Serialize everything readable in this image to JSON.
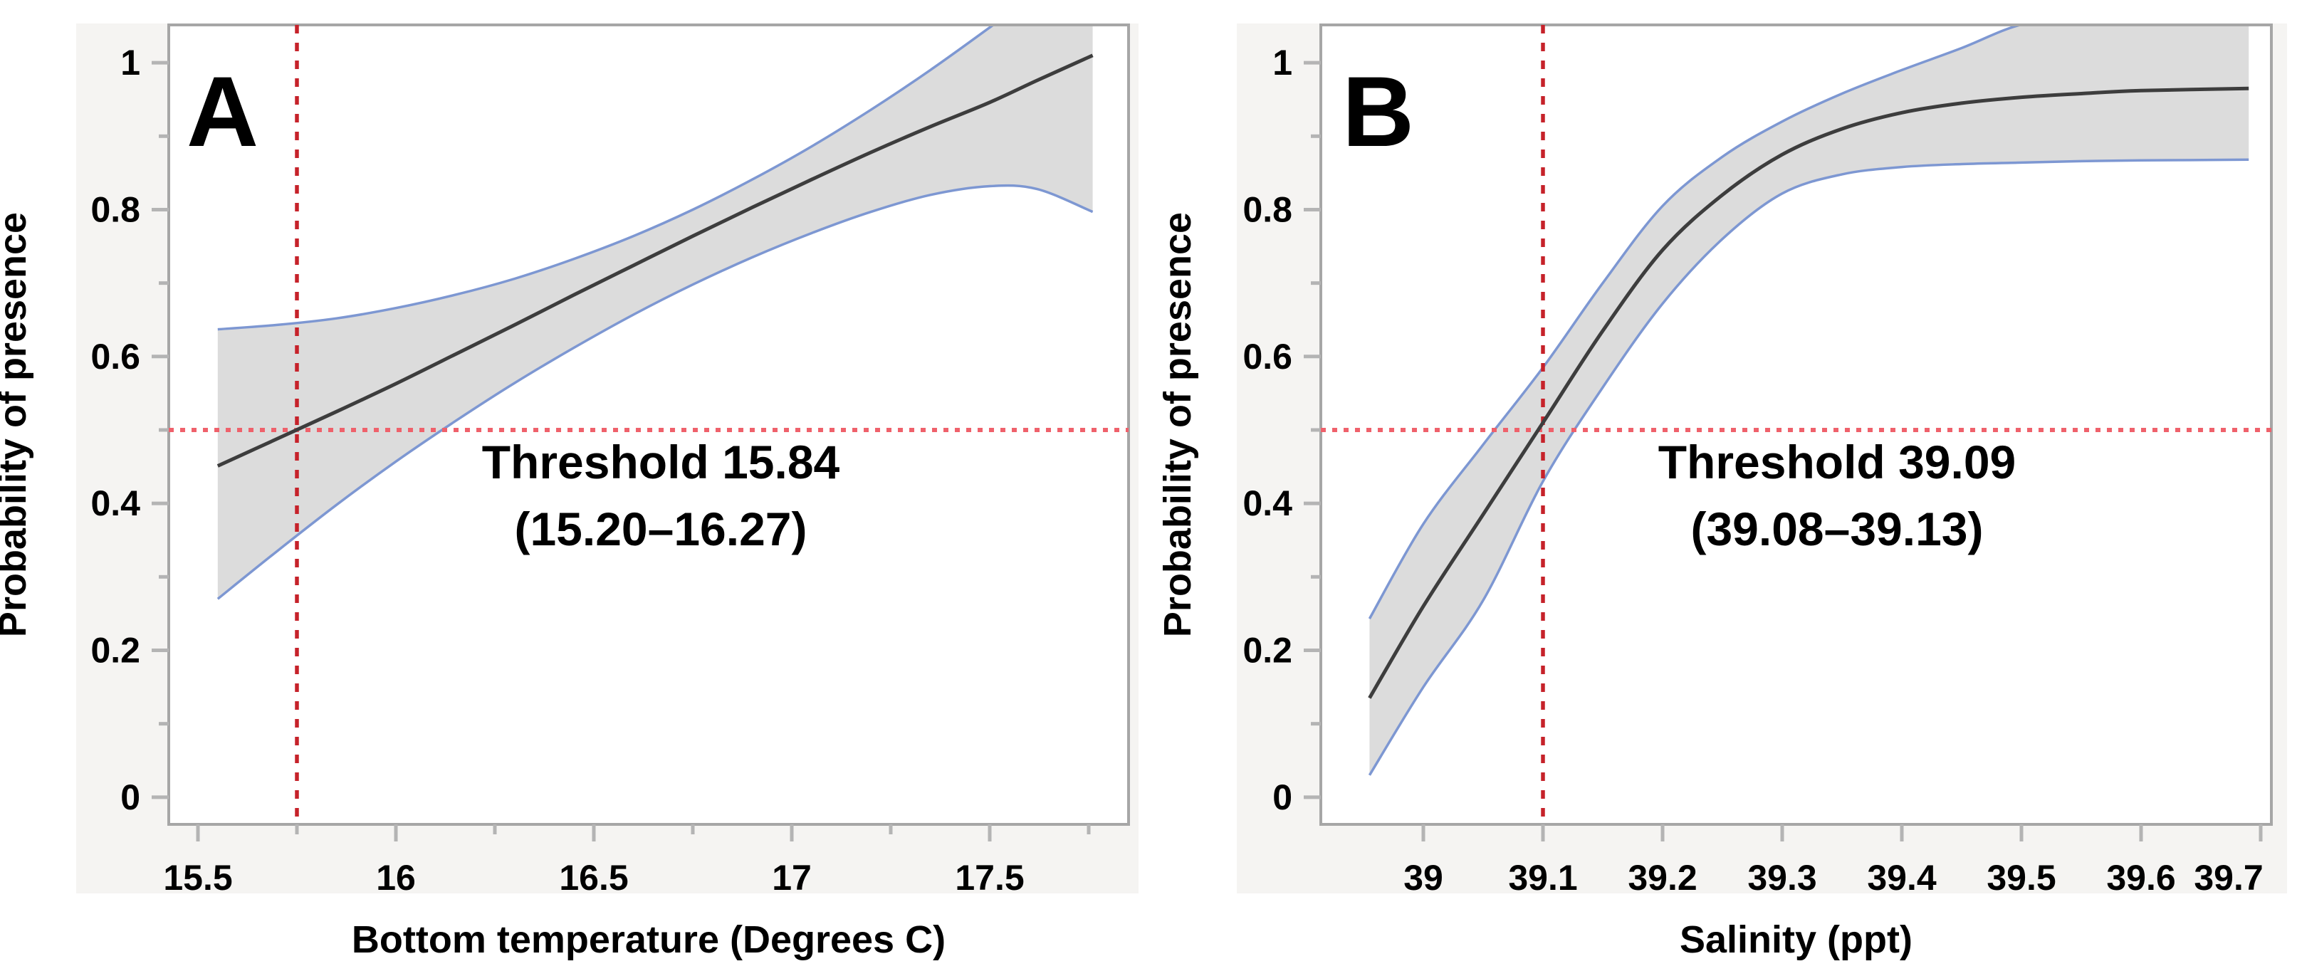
{
  "figure": {
    "y_axis_title": "Probability of presence",
    "background_color": "#ffffff",
    "panel_block_color": "#f5f4f2",
    "plot_border_color": "#a6a6a6",
    "tick_color": "#b4b4b4",
    "band_fill_color": "#dcdcdc",
    "band_edge_color": "#7d97d2",
    "fit_line_color": "#3d3d3d",
    "crosshair_v_color": "#c6222a",
    "crosshair_h_color": "#ef616b"
  },
  "chart_data": [
    {
      "type": "line",
      "panel_label": "A",
      "title": "",
      "xlabel": "Bottom temperature (Degrees C)",
      "ylabel": "Probability of presence",
      "xlim": [
        15.426,
        17.851
      ],
      "ylim": [
        -0.037,
        1.0515
      ],
      "x_major_ticks": [
        15.5,
        16,
        16.5,
        17,
        17.5
      ],
      "x_major_tick_labels": [
        "15.5",
        "16",
        "16.5",
        "17",
        "17.5"
      ],
      "x_minor_ticks": [
        15.75,
        16.25,
        16.75,
        17.25,
        17.75
      ],
      "y_major_ticks": [
        0,
        0.2,
        0.4,
        0.6,
        0.8,
        1
      ],
      "y_major_tick_labels": [
        "0",
        "0.2",
        "0.4",
        "0.6",
        "0.8",
        "1"
      ],
      "y_minor_ticks": [
        0.1,
        0.3,
        0.5,
        0.7,
        0.9
      ],
      "grid": false,
      "legend": "none",
      "threshold_label_line1": "Threshold 15.84",
      "threshold_label_line2": "(15.20–16.27)",
      "threshold_value": 15.84,
      "threshold_ci_low": 15.2,
      "threshold_ci_high": 16.27,
      "crosshair_x": 15.75,
      "crosshair_y": 0.5,
      "series": [
        {
          "name": "fit",
          "x": [
            15.55,
            15.7,
            15.85,
            16.0,
            16.15,
            16.3,
            16.45,
            16.6,
            16.75,
            16.9,
            17.05,
            17.2,
            17.35,
            17.5,
            17.62,
            17.76
          ],
          "y": [
            0.451,
            0.488,
            0.525,
            0.563,
            0.603,
            0.643,
            0.684,
            0.724,
            0.764,
            0.803,
            0.841,
            0.878,
            0.913,
            0.946,
            0.976,
            1.01
          ]
        },
        {
          "name": "lower95",
          "x": [
            15.55,
            15.7,
            15.85,
            16.0,
            16.15,
            16.3,
            16.45,
            16.6,
            16.75,
            16.9,
            17.05,
            17.2,
            17.35,
            17.5,
            17.62,
            17.76
          ],
          "y": [
            0.27,
            0.335,
            0.398,
            0.457,
            0.512,
            0.564,
            0.612,
            0.657,
            0.698,
            0.735,
            0.768,
            0.797,
            0.82,
            0.832,
            0.828,
            0.797
          ]
        },
        {
          "name": "upper95",
          "x": [
            15.55,
            15.7,
            15.85,
            16.0,
            16.15,
            16.3,
            16.45,
            16.6,
            16.75,
            16.9,
            17.05,
            17.2,
            17.35,
            17.5,
            17.62,
            17.76
          ],
          "y": [
            0.637,
            0.643,
            0.652,
            0.666,
            0.684,
            0.706,
            0.733,
            0.764,
            0.8,
            0.841,
            0.886,
            0.936,
            0.99,
            1.048,
            1.095,
            1.15
          ]
        }
      ]
    },
    {
      "type": "line",
      "panel_label": "B",
      "title": "",
      "xlabel": "Salinity (ppt)",
      "ylabel": "Probability of presence",
      "xlim": [
        38.914,
        39.709
      ],
      "ylim": [
        -0.037,
        1.0515
      ],
      "x_major_ticks": [
        39,
        39.1,
        39.2,
        39.3,
        39.4,
        39.5,
        39.6,
        39.7
      ],
      "x_major_tick_labels": [
        "39",
        "39.1",
        "39.2",
        "39.3",
        "39.4",
        "39.5",
        "39.6",
        "39.7"
      ],
      "x_minor_ticks": [],
      "y_major_ticks": [
        0,
        0.2,
        0.4,
        0.6,
        0.8,
        1
      ],
      "y_major_tick_labels": [
        "0",
        "0.2",
        "0.4",
        "0.6",
        "0.8",
        "1"
      ],
      "y_minor_ticks": [
        0.1,
        0.3,
        0.5,
        0.7,
        0.9
      ],
      "grid": false,
      "legend": "none",
      "threshold_label_line1": "Threshold 39.09",
      "threshold_label_line2": "(39.08–39.13)",
      "threshold_value": 39.09,
      "threshold_ci_low": 39.08,
      "threshold_ci_high": 39.13,
      "crosshair_x": 39.1,
      "crosshair_y": 0.5,
      "series": [
        {
          "name": "fit",
          "x": [
            38.955,
            39.0,
            39.05,
            39.1,
            39.15,
            39.2,
            39.25,
            39.3,
            39.35,
            39.4,
            39.45,
            39.5,
            39.55,
            39.6,
            39.69
          ],
          "y": [
            0.135,
            0.26,
            0.385,
            0.51,
            0.635,
            0.745,
            0.82,
            0.875,
            0.91,
            0.932,
            0.945,
            0.953,
            0.958,
            0.962,
            0.965
          ]
        },
        {
          "name": "lower95",
          "x": [
            38.955,
            39.0,
            39.05,
            39.1,
            39.15,
            39.2,
            39.25,
            39.3,
            39.35,
            39.4,
            39.45,
            39.5,
            39.55,
            39.6,
            39.69
          ],
          "y": [
            0.03,
            0.15,
            0.268,
            0.43,
            0.558,
            0.672,
            0.76,
            0.822,
            0.848,
            0.858,
            0.862,
            0.864,
            0.866,
            0.867,
            0.868
          ]
        },
        {
          "name": "upper95",
          "x": [
            38.955,
            39.0,
            39.05,
            39.1,
            39.15,
            39.2,
            39.25,
            39.3,
            39.35,
            39.4,
            39.45,
            39.5,
            39.55,
            39.6,
            39.69
          ],
          "y": [
            0.243,
            0.372,
            0.48,
            0.585,
            0.7,
            0.805,
            0.872,
            0.92,
            0.958,
            0.99,
            1.02,
            1.052,
            1.06,
            1.065,
            1.07
          ]
        }
      ]
    }
  ]
}
